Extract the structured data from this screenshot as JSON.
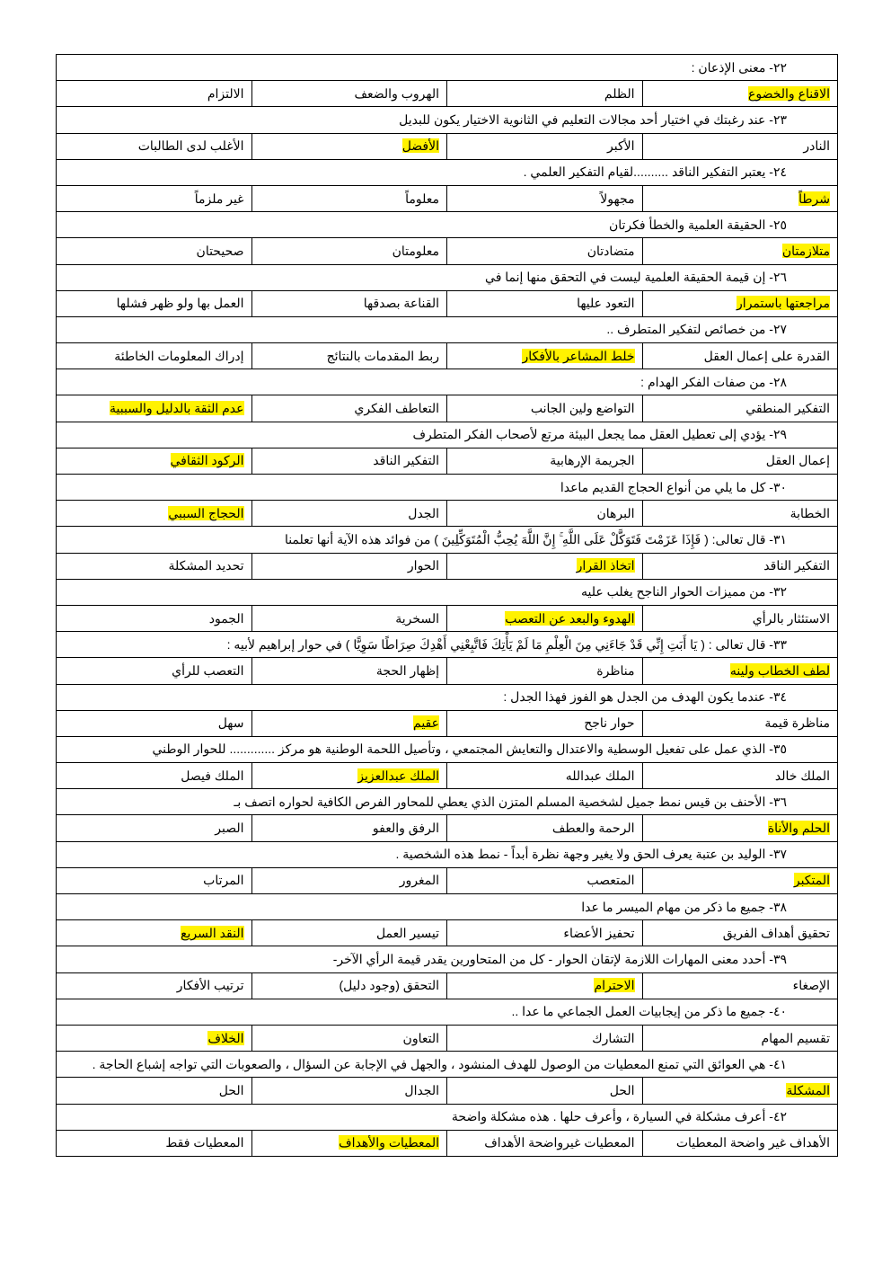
{
  "highlight_color": "#fff200",
  "questions": [
    {
      "text": "٢٢- معنى الإذعان :",
      "options": [
        "الاقناع والخضوع",
        "الظلم",
        "الهروب والضعف",
        "الالتزام"
      ],
      "answer": 0
    },
    {
      "text": "٢٣- عند رغبتك في اختيار أحد مجالات التعليم في الثانوية  الاختيار يكون للبديل",
      "options": [
        "النادر",
        "الأكبر",
        "الأفضل",
        "الأغلب لدى الطالبات"
      ],
      "answer": 2
    },
    {
      "text": "٢٤- يعتبر التفكير الناقد ..........لقيام التفكير العلمي .",
      "options": [
        "شرطاً",
        "مجهولاً",
        "معلوماً",
        "غير ملزماً"
      ],
      "answer": 0
    },
    {
      "text": "٢٥- الحقيقة العلمية والخطأ فكرتان",
      "options": [
        "متلازمتان",
        "متضادتان",
        "معلومتان",
        "صحيحتان"
      ],
      "answer": 0
    },
    {
      "text": "٢٦- إن قيمة الحقيقة العلمية ليست في التحقق منها إنما في",
      "options": [
        "مراجعتها باستمرار",
        "التعود عليها",
        "القناعة بصدقها",
        "العمل بها ولو ظهر فشلها"
      ],
      "answer": 0
    },
    {
      "text": "٢٧- من خصائص لتفكير المتطرف ..",
      "options": [
        "القدرة على إعمال العقل",
        "خلط المشاعر بالأفكار",
        "ربط المقدمات بالنتائج",
        "إدراك المعلومات الخاطئة"
      ],
      "answer": 1
    },
    {
      "text": "٢٨- من صفات الفكر الهدام :",
      "options": [
        "التفكير المنطقي",
        "التواضع ولين الجانب",
        "التعاطف الفكري",
        "عدم الثقة بالدليل والسببية"
      ],
      "answer": 3
    },
    {
      "text": "٢٩- يؤدي إلى تعطيل العقل مما يجعل البيئة مرتع لأصحاب الفكر المتطرف",
      "options": [
        "إعمال العقل",
        "الجريمة الإرهابية",
        "التفكير الناقد",
        "الركود الثقافي"
      ],
      "answer": 3
    },
    {
      "text": "٣٠- كل ما يلي من أنواع الحجاج القديم ماعدا",
      "options": [
        "الخطابة",
        "البرهان",
        "الجدل",
        "الحجاج السببي"
      ],
      "answer": 3
    },
    {
      "text": "٣١- قال تعالى: ( فَإِذَا عَزَمْتَ فَتَوَكَّلْ عَلَى اللَّهِ ۚ إِنَّ اللَّهَ يُحِبُّ الْمُتَوَكِّلِينَ ) من فوائد هذه الآية أنها تعلمنا",
      "options": [
        "التفكير الناقد",
        "اتخاذ القرار",
        "الحوار",
        "تحديد المشكلة"
      ],
      "answer": 1
    },
    {
      "text": "٣٢- من مميزات الحوار الناجح يغلب عليه",
      "options": [
        "الاستئثار بالرأي",
        "الهدوء والبعد عن التعصب",
        "السخرية",
        "الجمود"
      ],
      "answer": 1
    },
    {
      "text": "٣٣- قال تعالى : ( يَا أَبَتِ إِنِّي قَدْ جَاءَنِي مِنَ الْعِلْمِ مَا لَمْ يَأْتِكَ فَاتَّبِعْنِي أَهْدِكَ صِرَاطًا سَوِيًّا ) في حوار إبراهيم لأبيه :",
      "options": [
        "لطف الخطاب ولينه",
        "مناظرة",
        "إظهار الحجة",
        "التعصب للرأي"
      ],
      "answer": 0
    },
    {
      "text": "٣٤- عندما يكون الهدف من الجدل هو الفوز فهذا الجدل :",
      "options": [
        "مناظرة قيمة",
        "حوار ناجح",
        "عقيم",
        "سهل"
      ],
      "answer": 2
    },
    {
      "text": "٣٥- الذي عمل على تفعيل الوسطية والاعتدال والتعايش المجتمعي ، وتأصيل اللحمة الوطنية هو مركز .............  للحوار الوطني",
      "options": [
        "الملك خالد",
        "الملك عبدالله",
        "الملك عبدالعزيز",
        "الملك فيصل"
      ],
      "answer": 2
    },
    {
      "text": "٣٦- الأحنف بن قيس نمط جميل لشخصية المسلم المتزن الذي يعطي للمحاور الفرص الكافية لحواره اتصف بـ",
      "options": [
        "الحلم  والأناة",
        "الرحمة والعطف",
        "الرفق والعفو",
        "الصبر"
      ],
      "answer": 0
    },
    {
      "text": "٣٧- الوليد بن عتبة يعرف الحق ولا يغير وجهة نظرة أبداً -  نمط هذه الشخصية .",
      "options": [
        "المتكبر",
        "المتعصب",
        "المغرور",
        "المرتاب"
      ],
      "answer": 0
    },
    {
      "text": "٣٨- جميع ما ذكر  من مهام الميسر  ما عدا",
      "options": [
        "تحقيق أهداف الفريق",
        "تحفيز الأعضاء",
        "تيسير العمل",
        "النقد السريع"
      ],
      "answer": 3
    },
    {
      "text": "٣٩-  أحدد معنى المهارات اللازمة لإتقان الحوار - كل من المتحاورين يقدر قيمة الرأي الآخر-",
      "options": [
        "الإصغاء",
        "الاحترام",
        "التحقق (وجود دليل)",
        "ترتيب الأفكار"
      ],
      "answer": 1
    },
    {
      "text": "٤٠-  جميع ما ذكر من إيجابيات العمل الجماعي ما عدا ..",
      "options": [
        "تقسيم المهام",
        "التشارك",
        "التعاون",
        "الخلاف"
      ],
      "answer": 3
    },
    {
      "text": "٤١- هي العوائق التي تمنع المعطيات من الوصول للهدف المنشود ، والجهل في الإجابة عن السؤال ، والصعوبات التي تواجه إشباع الحاجة .",
      "options": [
        "المشكلة",
        "الحل",
        "الجدال",
        "الحل"
      ],
      "answer": 0
    },
    {
      "text": "٤٢- أعرف مشكلة في السيارة ، وأعرف حلها . هذه مشكلة واضحة",
      "options": [
        "الأهداف غير واضحة المعطيات",
        "المعطيات غيرواضحة الأهداف",
        "المعطيات والأهداف",
        "المعطيات فقط"
      ],
      "answer": 2
    }
  ]
}
